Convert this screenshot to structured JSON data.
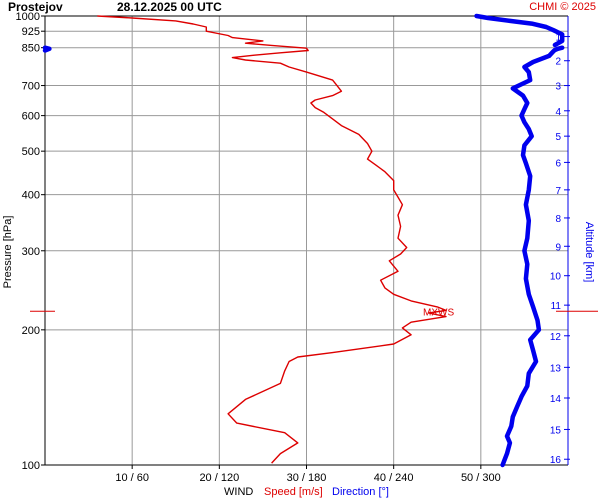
{
  "header": {
    "station": "Prostejov",
    "datetime": "28.12.2025 00 UTC",
    "credit": "CHMI © 2025"
  },
  "axes": {
    "ylabel_left": "Pressure [hPa]",
    "ylabel_right": "Altitude [km]",
    "xlabel_wind": "WIND",
    "xlabel_speed": "Speed [m/s]",
    "xlabel_direction": "Direction [°]"
  },
  "annotation": {
    "mxws_label": "MXWS",
    "mxws_pressure": 220
  },
  "colors": {
    "speed": "#dd0000",
    "direction": "#0000ee",
    "grid": "#999999",
    "axis": "#000000"
  },
  "chart_data": {
    "type": "line",
    "y_scale": "log-pressure",
    "ylim_hpa": [
      1000,
      100
    ],
    "pressure_ticks": [
      100,
      200,
      300,
      400,
      500,
      600,
      700,
      850,
      925,
      1000
    ],
    "altitude_ticks_km": [
      1,
      2,
      3,
      4,
      5,
      6,
      7,
      8,
      9,
      10,
      11,
      12,
      13,
      14,
      15,
      16
    ],
    "altitude_tick_pressure_hpa": [
      900,
      795,
      700,
      615,
      540,
      472,
      410,
      355,
      307,
      264,
      227,
      194,
      165,
      141,
      120,
      103
    ],
    "speed_axis": {
      "range_ms": [
        0,
        60
      ],
      "ticks": [
        10,
        20,
        30,
        40,
        50
      ]
    },
    "direction_axis": {
      "range_deg": [
        0,
        360
      ],
      "ticks": [
        60,
        120,
        180,
        240,
        300
      ]
    },
    "x_tick_labels": [
      "10 / 60",
      "20 / 120",
      "30 / 180",
      "40 / 240",
      "50 / 300"
    ],
    "series": [
      {
        "name": "Speed [m/s]",
        "unit": "m/s",
        "points": [
          [
            1000,
            6
          ],
          [
            990,
            10
          ],
          [
            975,
            15
          ],
          [
            960,
            17
          ],
          [
            945,
            18.5
          ],
          [
            925,
            18.5
          ],
          [
            905,
            21
          ],
          [
            895,
            21.5
          ],
          [
            880,
            25
          ],
          [
            870,
            23
          ],
          [
            860,
            26
          ],
          [
            848,
            30
          ],
          [
            838,
            30.2
          ],
          [
            828,
            27
          ],
          [
            818,
            24
          ],
          [
            808,
            21.5
          ],
          [
            798,
            23
          ],
          [
            785,
            27
          ],
          [
            770,
            28
          ],
          [
            750,
            30
          ],
          [
            720,
            33
          ],
          [
            700,
            33.5
          ],
          [
            680,
            34
          ],
          [
            665,
            33
          ],
          [
            650,
            31
          ],
          [
            640,
            30.5
          ],
          [
            625,
            31
          ],
          [
            610,
            32
          ],
          [
            590,
            33
          ],
          [
            570,
            34
          ],
          [
            545,
            36
          ],
          [
            520,
            37
          ],
          [
            500,
            37.5
          ],
          [
            480,
            37
          ],
          [
            465,
            38
          ],
          [
            450,
            39
          ],
          [
            430,
            40
          ],
          [
            410,
            40
          ],
          [
            395,
            40.5
          ],
          [
            380,
            41
          ],
          [
            360,
            40.5
          ],
          [
            340,
            40.8
          ],
          [
            320,
            40.5
          ],
          [
            305,
            41.5
          ],
          [
            295,
            40.8
          ],
          [
            285,
            39.5
          ],
          [
            270,
            40.5
          ],
          [
            258,
            38.5
          ],
          [
            248,
            39
          ],
          [
            240,
            40
          ],
          [
            232,
            42
          ],
          [
            225,
            45
          ],
          [
            221,
            46
          ],
          [
            218,
            44
          ],
          [
            214,
            46
          ],
          [
            208,
            42
          ],
          [
            202,
            41
          ],
          [
            195,
            42
          ],
          [
            186,
            40
          ],
          [
            178,
            33
          ],
          [
            174,
            29
          ],
          [
            170,
            28
          ],
          [
            162,
            27.5
          ],
          [
            152,
            27
          ],
          [
            140,
            23
          ],
          [
            130,
            21
          ],
          [
            124,
            22
          ],
          [
            118,
            27.5
          ],
          [
            112,
            29
          ],
          [
            106,
            27
          ],
          [
            101,
            26
          ]
        ]
      },
      {
        "name": "Direction [°]",
        "unit": "deg",
        "points": [
          [
            1000,
            297
          ],
          [
            990,
            305
          ],
          [
            975,
            320
          ],
          [
            962,
            335
          ],
          [
            945,
            345
          ],
          [
            930,
            350
          ],
          [
            910,
            356
          ],
          [
            880,
            356
          ],
          [
            862,
            351
          ],
          [
            850,
            0
          ],
          [
            845,
            3
          ],
          [
            838,
            0
          ],
          [
            850,
            356
          ],
          [
            845,
            353
          ],
          [
            840,
            351
          ],
          [
            835,
            350
          ],
          [
            815,
            347
          ],
          [
            790,
            336
          ],
          [
            770,
            330
          ],
          [
            750,
            333
          ],
          [
            720,
            334
          ],
          [
            690,
            322
          ],
          [
            665,
            329
          ],
          [
            640,
            332
          ],
          [
            620,
            330
          ],
          [
            600,
            328
          ],
          [
            580,
            330
          ],
          [
            560,
            333
          ],
          [
            540,
            335
          ],
          [
            515,
            330
          ],
          [
            490,
            329
          ],
          [
            470,
            331
          ],
          [
            440,
            334
          ],
          [
            410,
            333
          ],
          [
            380,
            331
          ],
          [
            350,
            333
          ],
          [
            320,
            332
          ],
          [
            300,
            330
          ],
          [
            280,
            332
          ],
          [
            260,
            331
          ],
          [
            240,
            333
          ],
          [
            225,
            336
          ],
          [
            210,
            339
          ],
          [
            200,
            340
          ],
          [
            190,
            334
          ],
          [
            180,
            336
          ],
          [
            170,
            338
          ],
          [
            160,
            333
          ],
          [
            150,
            332
          ],
          [
            142,
            328
          ],
          [
            135,
            325
          ],
          [
            128,
            322
          ],
          [
            122,
            321
          ],
          [
            116,
            318
          ],
          [
            112,
            320
          ],
          [
            106,
            318
          ],
          [
            102,
            316
          ],
          [
            100,
            315
          ]
        ]
      }
    ]
  }
}
